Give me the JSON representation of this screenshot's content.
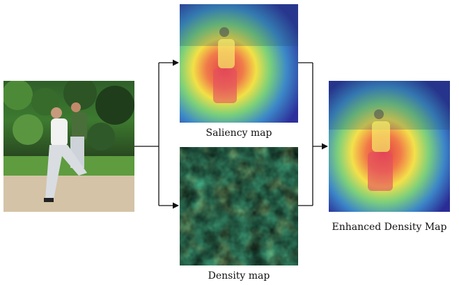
{
  "captions": {
    "saliency": "Saliency map",
    "density": "Density map",
    "enhanced": "Enhanced Density Map"
  }
}
